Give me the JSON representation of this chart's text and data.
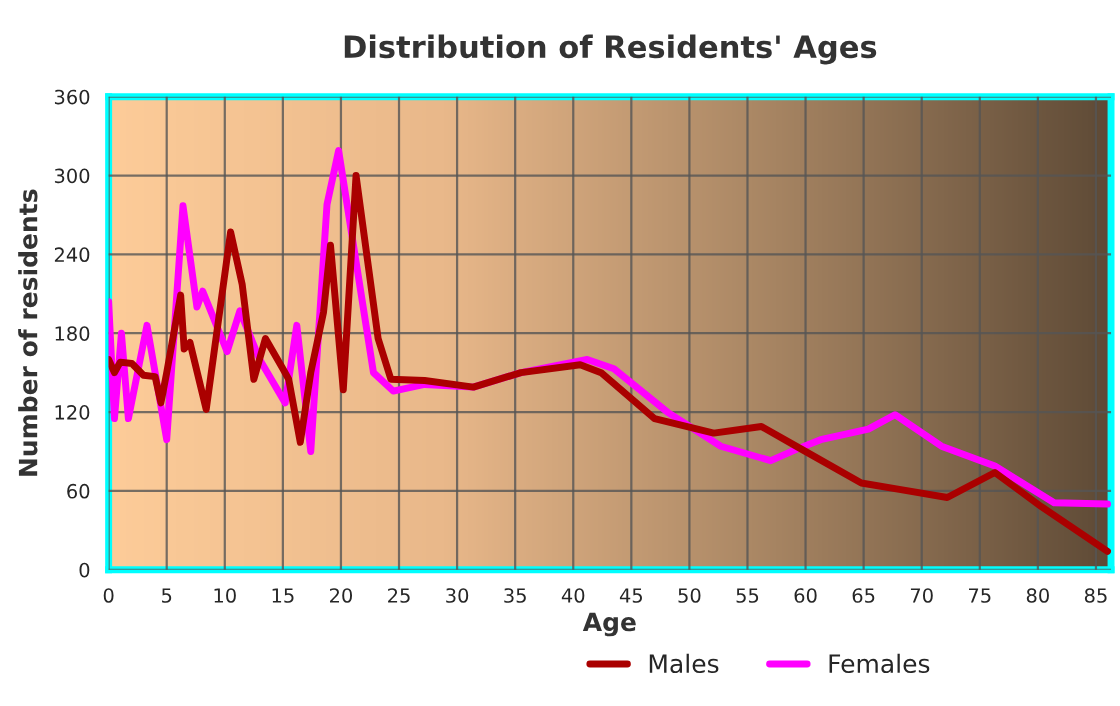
{
  "chart_data": {
    "type": "line",
    "title": "Distribution of Residents' Ages",
    "xlabel": "Age",
    "ylabel": "Number of residents",
    "xlim": [
      0,
      86.3
    ],
    "xticks": [
      0,
      5,
      10,
      15,
      20,
      25,
      30,
      35,
      40,
      45,
      50,
      55,
      60,
      65,
      70,
      75,
      80,
      85
    ],
    "ylim": [
      0,
      360
    ],
    "yticks": [
      0,
      60,
      120,
      180,
      240,
      300,
      360
    ],
    "grid": true,
    "legend": "bottom",
    "line_style": "solid",
    "series": [
      {
        "name": "Males",
        "color": "#aa0000",
        "x": [
          0,
          0.5,
          1,
          2,
          3,
          4,
          4.5,
          5,
          6.2,
          6.5,
          7,
          8.4,
          10.5,
          11.5,
          12.5,
          13.5,
          15,
          15.5,
          16.5,
          17.4,
          18.5,
          19.1,
          20.2,
          21.3,
          23.2,
          24.3,
          27.2,
          31.4,
          35.5,
          40.6,
          42.4,
          47,
          52.1,
          56.2,
          59.6,
          64.8,
          68.2,
          72.2,
          76.3,
          80.3,
          86
        ],
        "values": [
          160,
          150,
          158,
          157,
          148,
          147,
          127,
          150,
          209,
          168,
          173,
          122,
          257,
          217,
          145,
          176,
          153,
          145,
          97,
          150,
          196,
          247,
          137,
          300,
          176,
          145,
          144,
          139,
          150,
          156,
          150,
          115,
          104,
          109,
          92,
          66,
          61,
          55,
          74,
          48,
          14
        ]
      },
      {
        "name": "Females",
        "color": "#ff00ff",
        "x": [
          0,
          0.5,
          1.1,
          1.7,
          3.3,
          5,
          6.4,
          7.6,
          8.1,
          10.2,
          11.3,
          13,
          15.2,
          16.2,
          17.4,
          18.8,
          19.8,
          22.8,
          24.5,
          27.2,
          31.4,
          35.5,
          41.2,
          43.5,
          48.1,
          52.7,
          57,
          59.3,
          61.3,
          65.4,
          67.7,
          71.7,
          76.3,
          81.4,
          86
        ],
        "values": [
          204,
          115,
          180,
          115,
          186,
          99,
          277,
          200,
          212,
          166,
          197,
          160,
          127,
          186,
          90,
          278,
          319,
          150,
          136,
          141,
          139,
          150,
          160,
          153,
          120,
          94,
          83,
          92,
          99,
          107,
          118,
          94,
          79,
          51,
          50
        ]
      }
    ]
  }
}
